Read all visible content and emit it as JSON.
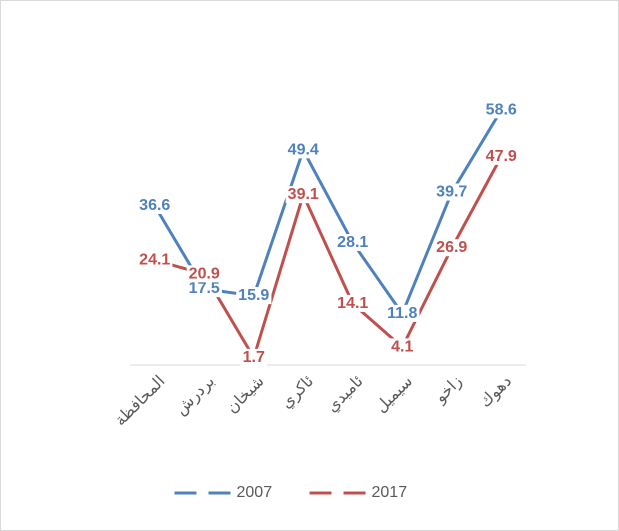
{
  "chart_data": {
    "type": "line",
    "categories": [
      "المحافظة",
      "بردرش",
      "شيخان",
      "ئاكري",
      "ئاميدي",
      "سيميل",
      "زاخو",
      "دهوك"
    ],
    "series": [
      {
        "name": "2007",
        "color": "#4f81bd",
        "values": [
          36.6,
          17.5,
          15.9,
          49.4,
          28.1,
          11.8,
          39.7,
          58.6
        ]
      },
      {
        "name": "2017",
        "color": "#c0504d",
        "values": [
          24.1,
          20.9,
          1.7,
          39.1,
          14.1,
          4.1,
          26.9,
          47.9
        ]
      }
    ],
    "ylim": [
      0,
      70
    ],
    "legend": "bottom"
  }
}
